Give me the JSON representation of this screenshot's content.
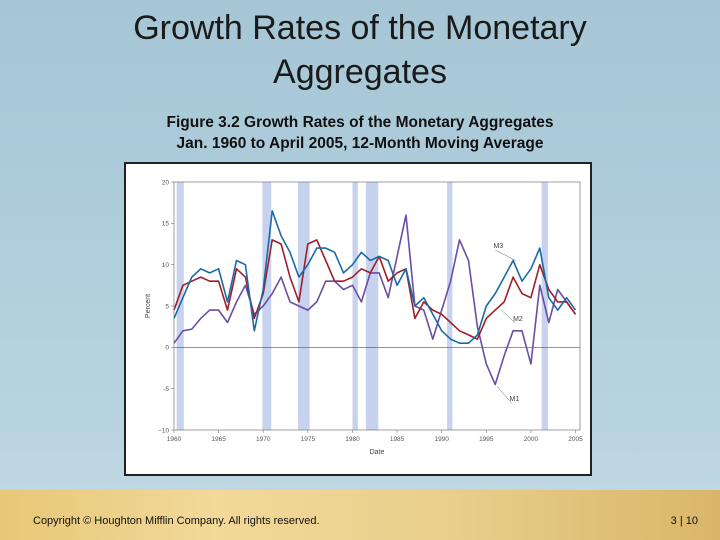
{
  "slide": {
    "title": "Growth Rates of the Monetary Aggregates",
    "subtitle_line1": "Figure 3.2 Growth Rates of the Monetary Aggregates",
    "subtitle_line2": "Jan. 1960 to April 2005, 12-Month Moving Average",
    "copyright": "Copyright © Houghton Mifflin Company.  All rights reserved.",
    "page_number": "3 | 10"
  },
  "colors": {
    "background": "#b3d0dd",
    "M1": "#6a4ea3",
    "M2": "#a01e2a",
    "M3": "#1b6aa6",
    "recession": "#c7d3ee"
  },
  "chart_data": {
    "type": "line",
    "xlabel": "Date",
    "ylabel": "Percent",
    "xlim": [
      1960,
      2005.5
    ],
    "ylim": [
      -10,
      20
    ],
    "x_ticks": [
      1960,
      1965,
      1970,
      1975,
      1980,
      1985,
      1990,
      1995,
      2000,
      2005
    ],
    "y_ticks": [
      -10,
      -5,
      0,
      5,
      10,
      15,
      20
    ],
    "recessions": [
      [
        1960.3,
        1961.1
      ],
      [
        1969.9,
        1970.9
      ],
      [
        1973.9,
        1975.2
      ],
      [
        1980.0,
        1980.6
      ],
      [
        1981.5,
        1982.9
      ],
      [
        1990.6,
        1991.2
      ],
      [
        2001.2,
        2001.9
      ]
    ],
    "series": [
      {
        "name": "M1",
        "x": [
          1960,
          1961,
          1962,
          1963,
          1964,
          1965,
          1966,
          1967,
          1968,
          1969,
          1970,
          1971,
          1972,
          1973,
          1974,
          1975,
          1976,
          1977,
          1978,
          1979,
          1980,
          1981,
          1982,
          1983,
          1984,
          1985,
          1986,
          1987,
          1988,
          1989,
          1990,
          1991,
          1992,
          1993,
          1994,
          1995,
          1996,
          1997,
          1998,
          1999,
          2000,
          2001,
          2002,
          2003,
          2004,
          2005
        ],
        "y": [
          0.5,
          2.0,
          2.2,
          3.5,
          4.5,
          4.5,
          3.0,
          5.5,
          7.5,
          4.0,
          5.0,
          6.5,
          8.5,
          5.5,
          5.0,
          4.5,
          5.5,
          8.0,
          8.0,
          7.0,
          7.5,
          5.5,
          9.0,
          9.0,
          6.0,
          11.0,
          16.0,
          5.0,
          4.5,
          1.0,
          4.5,
          8.0,
          13.0,
          10.5,
          2.5,
          -2.0,
          -4.5,
          -1.0,
          2.0,
          2.0,
          -2.0,
          7.5,
          3.0,
          7.0,
          5.5,
          4.0
        ]
      },
      {
        "name": "M2",
        "x": [
          1960,
          1961,
          1962,
          1963,
          1964,
          1965,
          1966,
          1967,
          1968,
          1969,
          1970,
          1971,
          1972,
          1973,
          1974,
          1975,
          1976,
          1977,
          1978,
          1979,
          1980,
          1981,
          1982,
          1983,
          1984,
          1985,
          1986,
          1987,
          1988,
          1989,
          1990,
          1991,
          1992,
          1993,
          1994,
          1995,
          1996,
          1997,
          1998,
          1999,
          2000,
          2001,
          2002,
          2003,
          2004,
          2005
        ],
        "y": [
          4.5,
          7.5,
          8.0,
          8.5,
          8.0,
          8.0,
          4.5,
          9.5,
          8.5,
          3.5,
          6.5,
          13.0,
          12.5,
          8.5,
          5.5,
          12.5,
          13.0,
          10.5,
          8.0,
          8.0,
          8.5,
          9.5,
          9.0,
          11.0,
          8.0,
          9.0,
          9.5,
          3.5,
          5.5,
          4.5,
          4.0,
          3.0,
          2.0,
          1.5,
          1.0,
          3.5,
          4.5,
          5.5,
          8.5,
          6.5,
          6.0,
          10.0,
          7.0,
          5.5,
          5.5,
          4.0
        ]
      },
      {
        "name": "M3",
        "x": [
          1960,
          1961,
          1962,
          1963,
          1964,
          1965,
          1966,
          1967,
          1968,
          1969,
          1970,
          1971,
          1972,
          1973,
          1974,
          1975,
          1976,
          1977,
          1978,
          1979,
          1980,
          1981,
          1982,
          1983,
          1984,
          1985,
          1986,
          1987,
          1988,
          1989,
          1990,
          1991,
          1992,
          1993,
          1994,
          1995,
          1996,
          1997,
          1998,
          1999,
          2000,
          2001,
          2002,
          2003,
          2004,
          2005
        ],
        "y": [
          3.5,
          6.0,
          8.5,
          9.5,
          9.0,
          9.5,
          5.5,
          10.5,
          10.0,
          2.0,
          7.0,
          16.5,
          13.5,
          11.5,
          8.5,
          10.0,
          12.0,
          12.0,
          11.5,
          9.0,
          10.0,
          11.5,
          10.5,
          11.0,
          10.5,
          7.5,
          9.5,
          5.0,
          6.0,
          4.0,
          2.0,
          1.0,
          0.5,
          0.5,
          1.5,
          5.0,
          6.5,
          8.5,
          10.5,
          8.0,
          9.5,
          12.0,
          6.0,
          4.5,
          6.0,
          4.5
        ]
      }
    ]
  }
}
